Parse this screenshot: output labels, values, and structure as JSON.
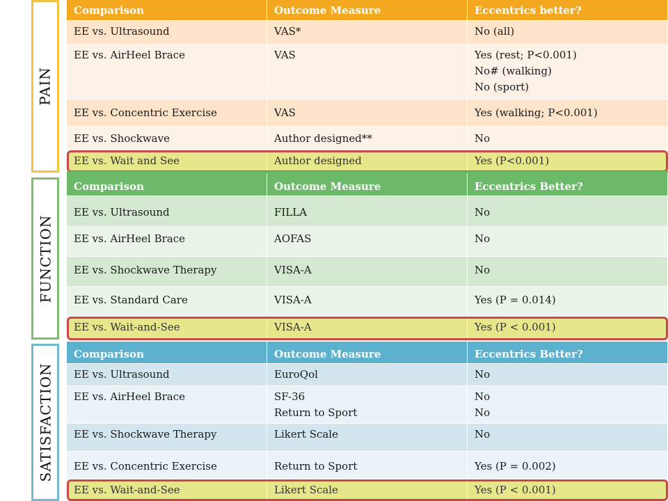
{
  "sections": {
    "pain": "PAIN",
    "function": "FUNCTION",
    "satisfaction": "SATISFACTION"
  },
  "pain_table": {
    "headers": [
      "Comparison",
      "Outcome Measure",
      "Eccentrics better?"
    ],
    "rows": [
      [
        "EE vs. Ultrasound",
        "VAS*",
        "No   (all)"
      ],
      [
        "EE vs. AirHeel Brace",
        "VAS",
        [
          "Yes   (rest; P<0.001)",
          "No#  (walking)",
          "No    (sport)"
        ]
      ],
      [
        "EE vs. Concentric Exercise",
        "VAS",
        "Yes   (walking; P<0.001)"
      ],
      [
        "EE vs. Shockwave",
        "Author designed**",
        "No"
      ],
      [
        "EE vs. Wait and See",
        "Author designed",
        "Yes    (P<0.001)"
      ]
    ]
  },
  "function_table": {
    "headers": [
      "Comparison",
      "Outcome Measure",
      "Eccentrics Better?"
    ],
    "rows": [
      [
        "EE vs. Ultrasound",
        "FILLA",
        "No"
      ],
      [
        "EE vs. AirHeel Brace",
        "AOFAS",
        "No"
      ],
      [
        "EE vs. Shockwave Therapy",
        "VISA-A",
        "No"
      ],
      [
        "EE vs. Standard Care",
        "VISA-A",
        "Yes (P = 0.014)"
      ],
      [
        "EE vs. Wait-and-See",
        "VISA-A",
        "Yes (P < 0.001)"
      ]
    ]
  },
  "satisfaction_table": {
    "headers": [
      "Comparison",
      "Outcome Measure",
      "Eccentrics Better?"
    ],
    "rows": [
      [
        "EE vs. Ultrasound",
        "EuroQol",
        "No"
      ],
      [
        "EE vs. AirHeel Brace",
        [
          "SF-36",
          "Return to Sport"
        ],
        [
          "No",
          "No"
        ]
      ],
      [
        "EE vs. Shockwave Therapy",
        "Likert Scale",
        "No"
      ],
      [
        "EE vs. Concentric Exercise",
        "Return to Sport",
        "Yes (P = 0.002)"
      ],
      [
        "EE vs. Wait-and-See",
        "Likert Scale",
        "Yes (P < 0.001)"
      ]
    ]
  },
  "colors": {
    "pain_header": "#f4a81f",
    "function_header": "#6cb96a",
    "satisfaction_header": "#5cb2ce",
    "highlight_fill": "#e6e68a",
    "highlight_border": "#c8494b"
  }
}
